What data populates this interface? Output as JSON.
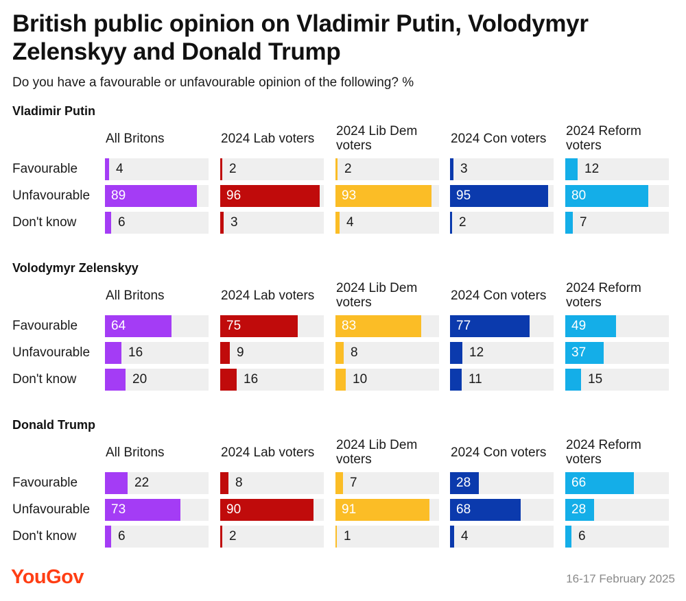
{
  "header": {
    "title": "British public opinion on Vladimir Putin, Volodymyr Zelenskyy and Donald Trump",
    "subtitle": "Do you have a favourable or unfavourable opinion of the following? %"
  },
  "footer": {
    "brand": "YouGov",
    "date": "16-17 February 2025"
  },
  "colors": {
    "All Britons": "#a43cf5",
    "2024 Lab voters": "#c00b0b",
    "2024 Lib Dem voters": "#fbbd26",
    "2024 Con voters": "#0b3aad",
    "2024 Reform voters": "#14aee8",
    "track": "#efefef",
    "brand": "#ff3e14"
  },
  "chart_data": {
    "type": "bar",
    "orientation": "horizontal",
    "xlim": [
      0,
      100
    ],
    "unit": "%",
    "groups": [
      "All Britons",
      "2024 Lab voters",
      "2024 Lib Dem voters",
      "2024 Con voters",
      "2024 Reform voters"
    ],
    "categories": [
      "Favourable",
      "Unfavourable",
      "Don't know"
    ],
    "sections": [
      {
        "title": "Vladimir Putin",
        "series": [
          {
            "name": "All Britons",
            "values": [
              4,
              89,
              6
            ]
          },
          {
            "name": "2024 Lab voters",
            "values": [
              2,
              96,
              3
            ]
          },
          {
            "name": "2024 Lib Dem voters",
            "values": [
              2,
              93,
              4
            ]
          },
          {
            "name": "2024 Con voters",
            "values": [
              3,
              95,
              2
            ]
          },
          {
            "name": "2024 Reform voters",
            "values": [
              12,
              80,
              7
            ]
          }
        ]
      },
      {
        "title": "Volodymyr Zelenskyy",
        "series": [
          {
            "name": "All Britons",
            "values": [
              64,
              16,
              20
            ]
          },
          {
            "name": "2024 Lab voters",
            "values": [
              75,
              9,
              16
            ]
          },
          {
            "name": "2024 Lib Dem voters",
            "values": [
              83,
              8,
              10
            ]
          },
          {
            "name": "2024 Con voters",
            "values": [
              77,
              12,
              11
            ]
          },
          {
            "name": "2024 Reform voters",
            "values": [
              49,
              37,
              15
            ]
          }
        ]
      },
      {
        "title": "Donald Trump",
        "series": [
          {
            "name": "All Britons",
            "values": [
              22,
              73,
              6
            ]
          },
          {
            "name": "2024 Lab voters",
            "values": [
              8,
              90,
              2
            ]
          },
          {
            "name": "2024 Lib Dem voters",
            "values": [
              7,
              91,
              1
            ]
          },
          {
            "name": "2024 Con voters",
            "values": [
              28,
              68,
              4
            ]
          },
          {
            "name": "2024 Reform voters",
            "values": [
              66,
              28,
              6
            ]
          }
        ]
      }
    ]
  }
}
